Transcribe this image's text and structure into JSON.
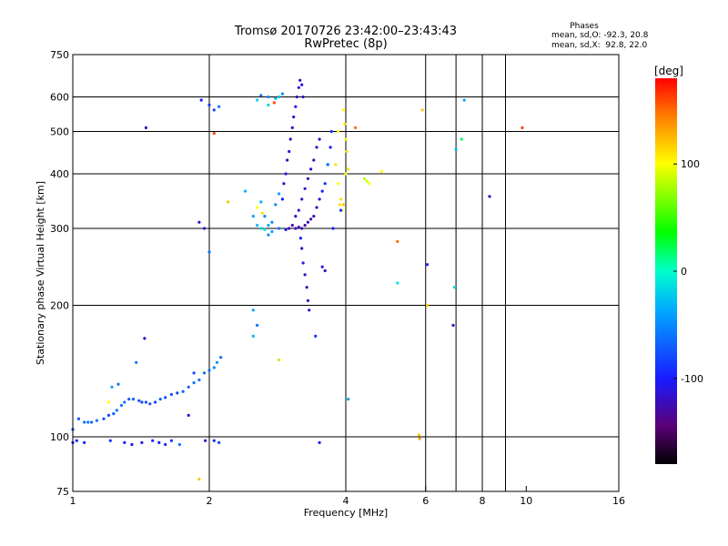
{
  "header": {
    "title": "Tromsø 20170726 23:42:00–23:43:43",
    "subtitle": "RwPretec (8p)",
    "phases_heading": "Phases",
    "phases_o": "mean, sd,O: -92.3, 20.8",
    "phases_x": "mean, sd,X:  92.8, 22.0"
  },
  "chart_data": {
    "type": "scatter",
    "xlabel": "Frequency [MHz]",
    "ylabel": "Stationary phase Virtual Height [km]",
    "xscale": "log",
    "yscale": "log",
    "xlim": [
      1,
      16
    ],
    "ylim": [
      75,
      750
    ],
    "x_ticks": [
      1,
      2,
      4,
      6,
      8,
      10,
      16
    ],
    "y_ticks": [
      75,
      100,
      200,
      300,
      400,
      500,
      600,
      750
    ],
    "x_grid": [
      2,
      4,
      6,
      7,
      8,
      9
    ],
    "y_grid": [
      100,
      200,
      300,
      400,
      500,
      600
    ],
    "grid": true,
    "colorbar": {
      "label": "[deg]",
      "range": [
        -180,
        180
      ],
      "ticks": [
        100,
        0,
        -100
      ]
    },
    "series": [
      {
        "values": [
          [
            1.0,
            97,
            -95
          ],
          [
            1.02,
            98,
            -100
          ],
          [
            1.06,
            97,
            -95
          ],
          [
            1.21,
            98,
            -90
          ],
          [
            1.3,
            97,
            -100
          ],
          [
            1.35,
            96,
            -110
          ],
          [
            1.42,
            97,
            -105
          ],
          [
            1.5,
            98,
            -95
          ],
          [
            1.55,
            97,
            -100
          ],
          [
            1.6,
            96,
            -95
          ],
          [
            1.65,
            98,
            -90
          ],
          [
            1.72,
            96,
            -60
          ],
          [
            1.96,
            98,
            -110
          ],
          [
            2.05,
            98,
            -95
          ],
          [
            2.1,
            97,
            -80
          ],
          [
            1.9,
            80,
            120
          ],
          [
            3.5,
            97,
            -100
          ],
          [
            5.8,
            101,
            120
          ],
          [
            5.82,
            99,
            130
          ],
          [
            1.0,
            104,
            -80
          ],
          [
            1.03,
            110,
            -80
          ],
          [
            1.06,
            108,
            -60
          ],
          [
            1.08,
            108,
            -60
          ],
          [
            1.1,
            108,
            -60
          ],
          [
            1.13,
            109,
            -60
          ],
          [
            1.17,
            110,
            -80
          ],
          [
            1.2,
            112,
            -80
          ],
          [
            1.23,
            113,
            -70
          ],
          [
            1.25,
            115,
            -60
          ],
          [
            1.28,
            118,
            -60
          ],
          [
            1.3,
            120,
            -60
          ],
          [
            1.33,
            122,
            -70
          ],
          [
            1.36,
            122,
            -70
          ],
          [
            1.4,
            121,
            -80
          ],
          [
            1.42,
            120,
            -80
          ],
          [
            1.45,
            120,
            -75
          ],
          [
            1.48,
            119,
            -75
          ],
          [
            1.52,
            120,
            -80
          ],
          [
            1.56,
            122,
            -70
          ],
          [
            1.6,
            123,
            -75
          ],
          [
            1.65,
            125,
            -75
          ],
          [
            1.7,
            126,
            -80
          ],
          [
            1.75,
            127,
            -70
          ],
          [
            1.8,
            130,
            -70
          ],
          [
            1.85,
            133,
            -60
          ],
          [
            1.9,
            135,
            -60
          ],
          [
            1.95,
            140,
            -60
          ],
          [
            2.0,
            142,
            -60
          ],
          [
            2.05,
            144,
            -50
          ],
          [
            2.08,
            148,
            -50
          ],
          [
            2.12,
            152,
            -60
          ],
          [
            1.8,
            112,
            -110
          ],
          [
            1.22,
            130,
            -40
          ],
          [
            1.38,
            148,
            -60
          ],
          [
            1.26,
            132,
            -60
          ],
          [
            1.44,
            168,
            -120
          ],
          [
            1.2,
            120,
            100
          ],
          [
            2.5,
            195,
            -40
          ],
          [
            2.55,
            180,
            -60
          ],
          [
            2.5,
            170,
            -30
          ],
          [
            2.85,
            150,
            80
          ],
          [
            3.43,
            170,
            -90
          ],
          [
            4.05,
            122,
            -40
          ],
          [
            5.2,
            225,
            -10
          ],
          [
            6.05,
            248,
            -100
          ],
          [
            6.05,
            200,
            120
          ],
          [
            6.9,
            180,
            -120
          ],
          [
            6.95,
            220,
            -20
          ],
          [
            1.45,
            510,
            -120
          ],
          [
            1.92,
            590,
            -100
          ],
          [
            2.0,
            575,
            -90
          ],
          [
            2.05,
            560,
            -80
          ],
          [
            2.1,
            570,
            -60
          ],
          [
            2.05,
            495,
            160
          ],
          [
            1.9,
            310,
            -110
          ],
          [
            1.95,
            300,
            -120
          ],
          [
            2.0,
            265,
            -60
          ],
          [
            2.2,
            345,
            120
          ],
          [
            2.4,
            365,
            -30
          ],
          [
            2.55,
            590,
            -20
          ],
          [
            2.6,
            605,
            -60
          ],
          [
            2.7,
            600,
            -50
          ],
          [
            2.8,
            595,
            -30
          ],
          [
            2.9,
            610,
            -50
          ],
          [
            2.7,
            575,
            -20
          ],
          [
            2.85,
            600,
            -30
          ],
          [
            2.78,
            582,
            160
          ],
          [
            2.5,
            320,
            -40
          ],
          [
            2.55,
            305,
            -30
          ],
          [
            2.6,
            300,
            -20
          ],
          [
            2.65,
            298,
            -10
          ],
          [
            2.7,
            305,
            -40
          ],
          [
            2.75,
            310,
            -50
          ],
          [
            2.8,
            340,
            -50
          ],
          [
            2.85,
            360,
            -40
          ],
          [
            2.6,
            345,
            -30
          ],
          [
            2.65,
            320,
            -50
          ],
          [
            2.55,
            335,
            100
          ],
          [
            2.62,
            325,
            110
          ],
          [
            2.7,
            290,
            -50
          ],
          [
            2.75,
            295,
            -40
          ],
          [
            2.85,
            300,
            -60
          ],
          [
            2.95,
            298,
            -110
          ],
          [
            3.0,
            300,
            -120
          ],
          [
            3.05,
            305,
            -130
          ],
          [
            3.1,
            300,
            -120
          ],
          [
            3.15,
            302,
            -130
          ],
          [
            3.2,
            300,
            -120
          ],
          [
            3.25,
            305,
            -130
          ],
          [
            3.3,
            310,
            -120
          ],
          [
            3.35,
            315,
            -130
          ],
          [
            3.4,
            320,
            -120
          ],
          [
            3.45,
            335,
            -120
          ],
          [
            3.5,
            350,
            -110
          ],
          [
            3.55,
            365,
            -100
          ],
          [
            3.6,
            380,
            -90
          ],
          [
            3.65,
            420,
            -80
          ],
          [
            3.7,
            460,
            -100
          ],
          [
            3.72,
            500,
            -90
          ],
          [
            2.9,
            350,
            -100
          ],
          [
            2.92,
            380,
            -120
          ],
          [
            2.95,
            400,
            -110
          ],
          [
            2.97,
            430,
            -120
          ],
          [
            3.0,
            450,
            -110
          ],
          [
            3.02,
            480,
            -120
          ],
          [
            3.05,
            510,
            -110
          ],
          [
            3.07,
            540,
            -120
          ],
          [
            3.1,
            570,
            -110
          ],
          [
            3.12,
            600,
            -120
          ],
          [
            3.15,
            630,
            -110
          ],
          [
            3.17,
            655,
            -120
          ],
          [
            3.2,
            640,
            -110
          ],
          [
            3.22,
            600,
            -120
          ],
          [
            3.1,
            320,
            -120
          ],
          [
            3.15,
            330,
            -110
          ],
          [
            3.2,
            350,
            -120
          ],
          [
            3.25,
            370,
            -110
          ],
          [
            3.3,
            390,
            -120
          ],
          [
            3.35,
            410,
            -110
          ],
          [
            3.4,
            430,
            -120
          ],
          [
            3.45,
            460,
            -110
          ],
          [
            3.5,
            480,
            -120
          ],
          [
            3.2,
            270,
            -120
          ],
          [
            3.22,
            250,
            -110
          ],
          [
            3.25,
            235,
            -120
          ],
          [
            3.28,
            220,
            -130
          ],
          [
            3.3,
            205,
            -120
          ],
          [
            3.32,
            195,
            -110
          ],
          [
            3.18,
            285,
            -100
          ],
          [
            3.55,
            245,
            -110
          ],
          [
            3.6,
            240,
            -120
          ],
          [
            3.65,
            420,
            -60
          ],
          [
            3.8,
            420,
            110
          ],
          [
            3.85,
            380,
            100
          ],
          [
            3.9,
            350,
            110
          ],
          [
            3.95,
            340,
            120
          ],
          [
            4.0,
            400,
            100
          ],
          [
            3.88,
            340,
            110
          ],
          [
            3.92,
            330,
            100
          ],
          [
            3.95,
            560,
            100
          ],
          [
            3.98,
            520,
            110
          ],
          [
            4.0,
            480,
            100
          ],
          [
            4.02,
            450,
            110
          ],
          [
            3.85,
            500,
            100
          ],
          [
            4.4,
            390,
            80
          ],
          [
            4.45,
            385,
            90
          ],
          [
            4.5,
            380,
            100
          ],
          [
            4.05,
            410,
            110
          ],
          [
            4.2,
            510,
            150
          ],
          [
            4.8,
            405,
            100
          ],
          [
            3.9,
            330,
            -90
          ],
          [
            3.75,
            300,
            -100
          ],
          [
            5.2,
            280,
            150
          ],
          [
            5.9,
            560,
            120
          ],
          [
            7.0,
            455,
            -30
          ],
          [
            7.2,
            480,
            20
          ],
          [
            7.3,
            590,
            -40
          ],
          [
            8.3,
            355,
            -120
          ],
          [
            9.8,
            510,
            160
          ],
          [
            1.85,
            140,
            -80
          ]
        ]
      }
    ]
  }
}
